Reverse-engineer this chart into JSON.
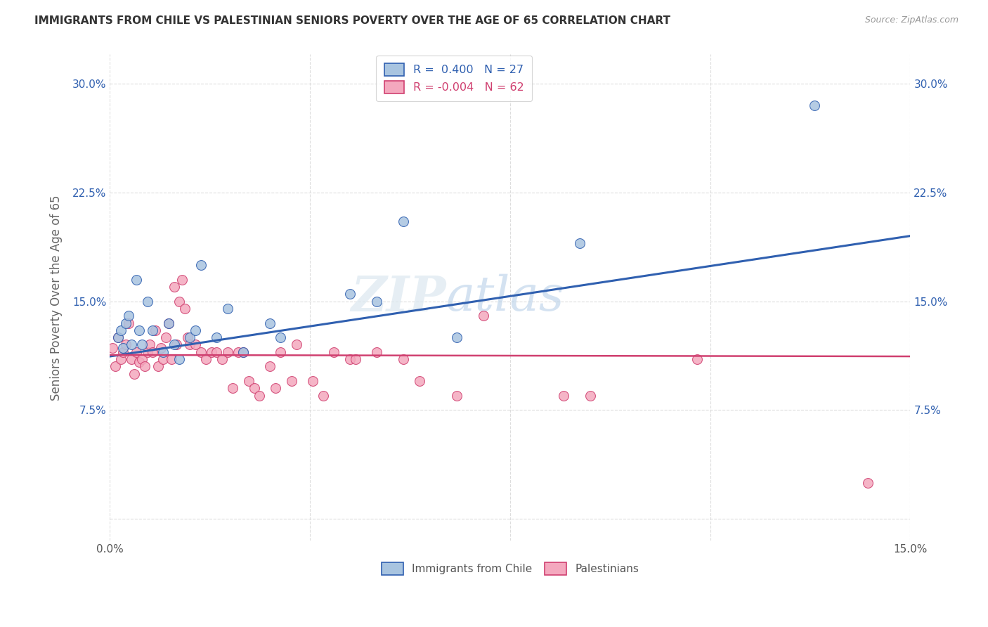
{
  "title": "IMMIGRANTS FROM CHILE VS PALESTINIAN SENIORS POVERTY OVER THE AGE OF 65 CORRELATION CHART",
  "source": "Source: ZipAtlas.com",
  "ylabel": "Seniors Poverty Over the Age of 65",
  "chile_color": "#a8c4e0",
  "chile_line_color": "#3060b0",
  "pal_color": "#f4a8be",
  "pal_line_color": "#d04070",
  "watermark_zip": "ZIP",
  "watermark_atlas": "atlas",
  "background_color": "#ffffff",
  "grid_color": "#dddddd",
  "xlim": [
    0,
    15
  ],
  "ylim": [
    -1.5,
    32
  ],
  "yticks": [
    0.0,
    7.5,
    15.0,
    22.5,
    30.0
  ],
  "xticks": [
    0.0,
    3.75,
    7.5,
    11.25,
    15.0
  ],
  "chile_scatter_x": [
    0.15,
    0.2,
    0.25,
    0.3,
    0.35,
    0.4,
    0.5,
    0.55,
    0.6,
    0.7,
    0.8,
    1.0,
    1.1,
    1.2,
    1.3,
    1.5,
    1.6,
    1.7,
    2.0,
    2.2,
    2.5,
    3.0,
    3.2,
    4.5,
    5.0,
    5.5,
    6.5,
    8.8,
    13.2
  ],
  "chile_scatter_y": [
    12.5,
    13.0,
    11.8,
    13.5,
    14.0,
    12.0,
    16.5,
    13.0,
    12.0,
    15.0,
    13.0,
    11.5,
    13.5,
    12.0,
    11.0,
    12.5,
    13.0,
    17.5,
    12.5,
    14.5,
    11.5,
    13.5,
    12.5,
    15.5,
    15.0,
    20.5,
    12.5,
    19.0,
    28.5
  ],
  "pal_scatter_x": [
    0.05,
    0.1,
    0.15,
    0.2,
    0.25,
    0.3,
    0.35,
    0.4,
    0.45,
    0.5,
    0.55,
    0.6,
    0.65,
    0.7,
    0.75,
    0.8,
    0.85,
    0.9,
    0.95,
    1.0,
    1.05,
    1.1,
    1.15,
    1.2,
    1.25,
    1.3,
    1.35,
    1.4,
    1.45,
    1.5,
    1.6,
    1.7,
    1.8,
    1.9,
    2.0,
    2.1,
    2.2,
    2.3,
    2.4,
    2.5,
    2.6,
    2.7,
    2.8,
    3.0,
    3.1,
    3.2,
    3.4,
    3.5,
    3.8,
    4.0,
    4.2,
    4.5,
    4.6,
    5.0,
    5.5,
    5.8,
    6.5,
    7.0,
    8.5,
    9.0,
    11.0,
    14.2
  ],
  "pal_scatter_y": [
    11.8,
    10.5,
    12.5,
    11.0,
    11.5,
    12.0,
    13.5,
    11.0,
    10.0,
    11.5,
    10.8,
    11.0,
    10.5,
    11.5,
    12.0,
    11.5,
    13.0,
    10.5,
    11.8,
    11.0,
    12.5,
    13.5,
    11.0,
    16.0,
    12.0,
    15.0,
    16.5,
    14.5,
    12.5,
    12.0,
    12.0,
    11.5,
    11.0,
    11.5,
    11.5,
    11.0,
    11.5,
    9.0,
    11.5,
    11.5,
    9.5,
    9.0,
    8.5,
    10.5,
    9.0,
    11.5,
    9.5,
    12.0,
    9.5,
    8.5,
    11.5,
    11.0,
    11.0,
    11.5,
    11.0,
    9.5,
    8.5,
    14.0,
    8.5,
    8.5,
    11.0,
    2.5
  ],
  "chile_trend_x0": 0,
  "chile_trend_y0": 11.2,
  "chile_trend_x1": 15,
  "chile_trend_y1": 19.5,
  "pal_trend_x0": 0,
  "pal_trend_y0": 11.3,
  "pal_trend_x1": 15,
  "pal_trend_y1": 11.2
}
